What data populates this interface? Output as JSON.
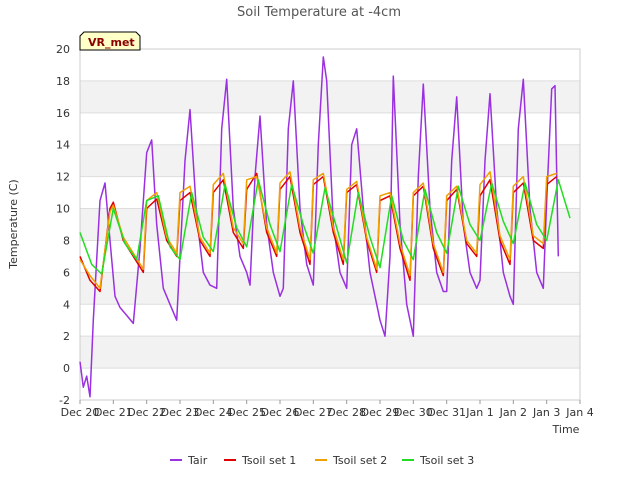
{
  "chart_data": {
    "type": "line",
    "title": "Soil Temperature at -4cm",
    "xlabel": "Time",
    "ylabel": "Temperature (C)",
    "badge": "VR_met",
    "xlim": [
      0,
      15
    ],
    "ylim": [
      -2,
      20
    ],
    "grid": "horizontal bands",
    "legend_position": "bottom",
    "x_tick_values": [
      0,
      1,
      2,
      3,
      4,
      5,
      6,
      7,
      8,
      9,
      10,
      11,
      12,
      13,
      14,
      15
    ],
    "x_tick_labels": [
      "Dec 20",
      "Dec 21",
      "Dec 22",
      "Dec 23",
      "Dec 24",
      "Dec 25",
      "Dec 26",
      "Dec 27",
      "Dec 28",
      "Dec 29",
      "Dec 30",
      "Dec 31",
      "Jan 1",
      "Jan 2",
      "Jan 3",
      "Jan 4"
    ],
    "y_ticks": [
      -2,
      0,
      2,
      4,
      6,
      8,
      10,
      12,
      14,
      16,
      18,
      20
    ],
    "series": [
      {
        "name": "Tair",
        "color": "#9b30e0",
        "x": [
          0,
          0.1,
          0.2,
          0.3,
          0.4,
          0.6,
          0.75,
          0.9,
          1.05,
          1.2,
          1.4,
          1.6,
          1.8,
          2.0,
          2.15,
          2.3,
          2.5,
          2.7,
          2.9,
          3.15,
          3.3,
          3.5,
          3.7,
          3.9,
          4.1,
          4.25,
          4.4,
          4.6,
          4.8,
          5.0,
          5.1,
          5.25,
          5.4,
          5.6,
          5.8,
          6.0,
          6.1,
          6.25,
          6.4,
          6.6,
          6.8,
          7.0,
          7.15,
          7.3,
          7.4,
          7.6,
          7.8,
          8.0,
          8.15,
          8.3,
          8.5,
          8.7,
          8.9,
          9.0,
          9.15,
          9.3,
          9.4,
          9.6,
          9.8,
          10.0,
          10.15,
          10.3,
          10.5,
          10.7,
          10.9,
          11.0,
          11.15,
          11.3,
          11.5,
          11.7,
          11.9,
          12.0,
          12.15,
          12.3,
          12.5,
          12.7,
          12.9,
          13.0,
          13.15,
          13.3,
          13.5,
          13.7,
          13.9,
          14.0,
          14.15,
          14.25,
          14.35
        ],
        "y": [
          0.4,
          -1.2,
          -0.5,
          -1.8,
          3.0,
          10.5,
          11.6,
          8.0,
          4.5,
          3.8,
          3.3,
          2.8,
          7.5,
          13.5,
          14.3,
          9.0,
          5.0,
          4.0,
          3.0,
          13.0,
          16.2,
          9.5,
          6.0,
          5.2,
          5.0,
          15.0,
          18.1,
          10.0,
          7.0,
          6.0,
          5.2,
          12.0,
          15.8,
          9.0,
          6.0,
          4.5,
          5.0,
          15.0,
          18.0,
          10.0,
          6.5,
          5.2,
          14.0,
          19.5,
          18.0,
          9.0,
          6.0,
          5.0,
          14.0,
          15.0,
          10.0,
          6.0,
          4.0,
          3.0,
          2.0,
          7.0,
          18.3,
          9.0,
          4.0,
          2.0,
          12.0,
          17.8,
          10.0,
          6.0,
          4.8,
          4.8,
          13.0,
          17.0,
          9.0,
          6.0,
          5.0,
          5.5,
          13.0,
          17.2,
          10.0,
          6.0,
          4.5,
          4.0,
          15.0,
          18.1,
          10.0,
          6.0,
          5.0,
          10.5,
          17.5,
          17.7,
          7.0
        ]
      },
      {
        "name": "Tsoil set 1",
        "color": "#e00000",
        "x": [
          0,
          0.3,
          0.6,
          0.9,
          1.0,
          1.3,
          1.6,
          1.9,
          2.0,
          2.3,
          2.6,
          2.9,
          3.0,
          3.3,
          3.6,
          3.9,
          4.0,
          4.3,
          4.6,
          4.9,
          5.0,
          5.3,
          5.6,
          5.9,
          6.0,
          6.3,
          6.6,
          6.9,
          7.0,
          7.3,
          7.6,
          7.9,
          8.0,
          8.3,
          8.6,
          8.9,
          9.0,
          9.3,
          9.6,
          9.9,
          10.0,
          10.3,
          10.6,
          10.9,
          11.0,
          11.3,
          11.6,
          11.9,
          12.0,
          12.3,
          12.6,
          12.9,
          13.0,
          13.3,
          13.6,
          13.9,
          14.0,
          14.3
        ],
        "y": [
          7.0,
          5.5,
          4.8,
          10.0,
          10.4,
          8.0,
          7.0,
          6.0,
          10.0,
          10.6,
          8.0,
          7.0,
          10.5,
          11.0,
          8.0,
          7.0,
          11.0,
          11.8,
          8.5,
          7.5,
          11.2,
          12.2,
          8.5,
          7.0,
          11.2,
          12.0,
          8.5,
          6.5,
          11.5,
          12.0,
          8.5,
          6.5,
          11.0,
          11.5,
          8.0,
          6.0,
          10.5,
          10.8,
          7.5,
          5.5,
          10.8,
          11.4,
          7.5,
          5.8,
          10.5,
          11.2,
          7.8,
          7.0,
          10.8,
          11.8,
          8.0,
          6.5,
          11.0,
          11.6,
          8.0,
          7.5,
          11.5,
          12.0
        ]
      },
      {
        "name": "Tsoil set 2",
        "color": "#f0a000",
        "x": [
          0,
          0.3,
          0.6,
          0.9,
          1.0,
          1.3,
          1.6,
          1.9,
          2.0,
          2.3,
          2.6,
          2.9,
          3.0,
          3.3,
          3.6,
          3.9,
          4.0,
          4.3,
          4.6,
          4.9,
          5.0,
          5.3,
          5.6,
          5.9,
          6.0,
          6.3,
          6.6,
          6.9,
          7.0,
          7.3,
          7.6,
          7.9,
          8.0,
          8.3,
          8.6,
          8.9,
          9.0,
          9.3,
          9.6,
          9.9,
          10.0,
          10.3,
          10.6,
          10.9,
          11.0,
          11.3,
          11.6,
          11.9,
          12.0,
          12.3,
          12.6,
          12.9,
          13.0,
          13.3,
          13.6,
          13.9,
          14.0,
          14.3
        ],
        "y": [
          6.8,
          5.8,
          5.0,
          9.8,
          10.2,
          8.2,
          7.2,
          6.2,
          10.5,
          11.0,
          8.2,
          7.2,
          11.0,
          11.4,
          8.2,
          7.2,
          11.5,
          12.2,
          8.8,
          7.8,
          11.8,
          12.0,
          8.8,
          7.2,
          11.6,
          12.3,
          8.8,
          6.8,
          11.8,
          12.2,
          8.8,
          6.8,
          11.2,
          11.7,
          8.2,
          6.2,
          10.8,
          11.0,
          7.8,
          5.8,
          11.0,
          11.6,
          7.8,
          6.0,
          10.8,
          11.4,
          8.0,
          7.2,
          11.5,
          12.3,
          8.3,
          6.8,
          11.4,
          12.0,
          8.3,
          7.8,
          12.0,
          12.2
        ]
      },
      {
        "name": "Tsoil set 3",
        "color": "#22dd22",
        "x": [
          0,
          0.35,
          0.65,
          1.0,
          1.35,
          1.7,
          2.0,
          2.35,
          2.7,
          3.0,
          3.35,
          3.7,
          4.0,
          4.35,
          4.7,
          5.0,
          5.35,
          5.7,
          6.0,
          6.35,
          6.7,
          7.0,
          7.35,
          7.7,
          8.0,
          8.35,
          8.7,
          9.0,
          9.35,
          9.7,
          10.0,
          10.35,
          10.7,
          11.0,
          11.35,
          11.7,
          12.0,
          12.35,
          12.7,
          13.0,
          13.35,
          13.7,
          14.0,
          14.35,
          14.7
        ],
        "y": [
          8.5,
          6.5,
          5.9,
          10.0,
          7.8,
          6.8,
          10.5,
          10.8,
          7.6,
          6.8,
          11.0,
          8.2,
          7.3,
          11.5,
          8.8,
          7.6,
          11.8,
          9.0,
          7.3,
          11.5,
          9.0,
          7.2,
          11.3,
          8.8,
          6.6,
          11.0,
          8.2,
          6.3,
          10.8,
          8.0,
          6.8,
          11.2,
          8.5,
          7.2,
          11.4,
          9.0,
          8.0,
          11.6,
          9.2,
          7.8,
          11.6,
          9.0,
          8.0,
          11.8,
          9.4
        ]
      }
    ]
  }
}
